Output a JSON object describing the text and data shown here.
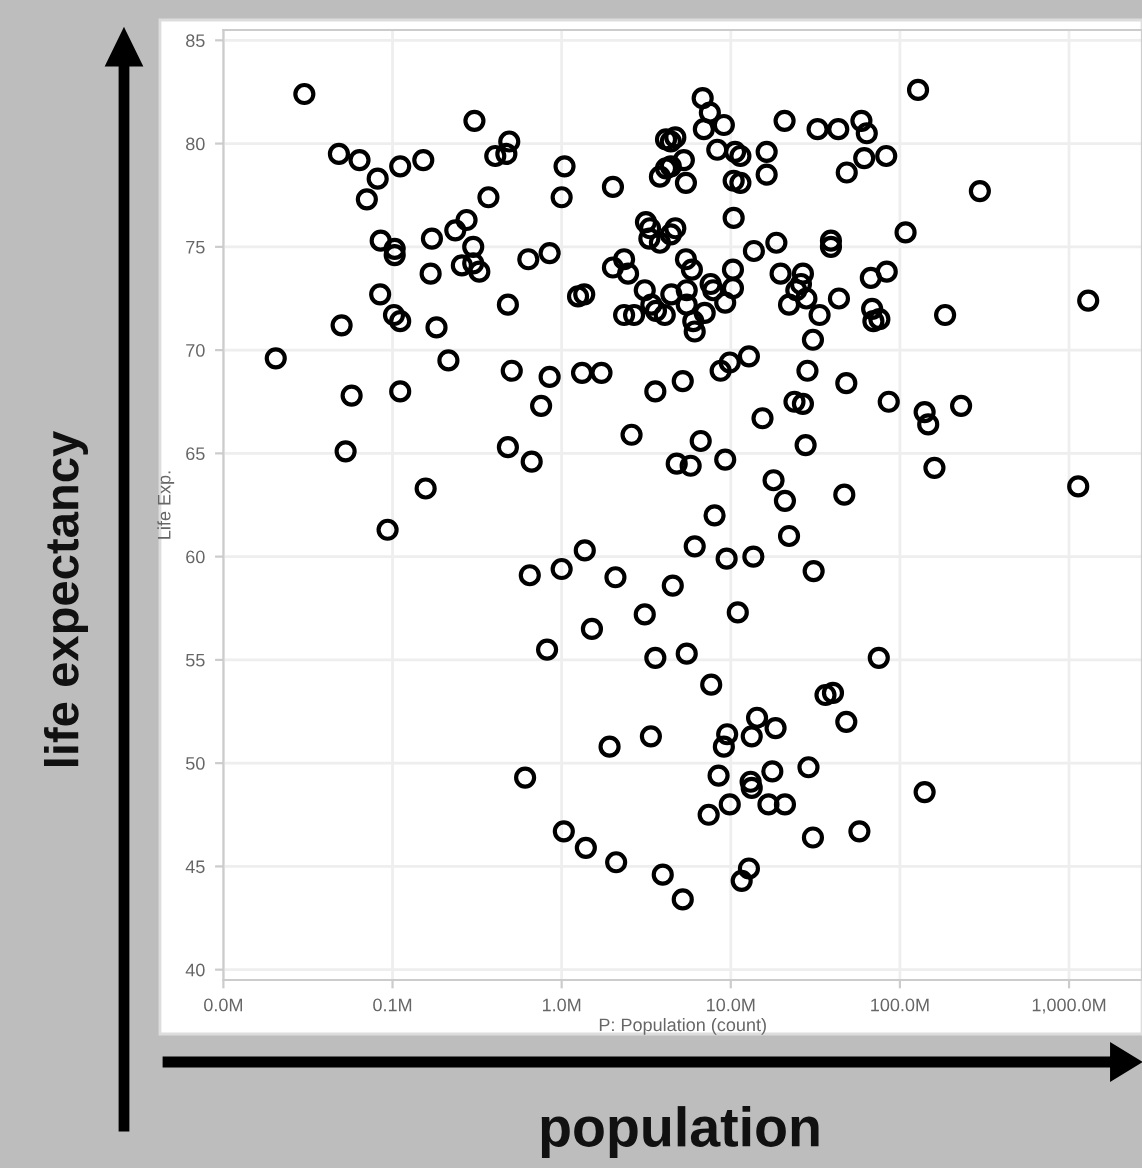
{
  "chart_data": {
    "type": "scatter",
    "xlabel": "P: Population (count)",
    "ylabel": "Life Exp.",
    "annotations": [
      "life expectancy",
      "population"
    ],
    "log": "x",
    "xlim": [
      0.01,
      2700
    ],
    "ylim": [
      39.5,
      85.5
    ],
    "xticks": [
      {
        "value": 0.01,
        "label": "0.0M"
      },
      {
        "value": 0.1,
        "label": "0.1M"
      },
      {
        "value": 1,
        "label": "1.0M"
      },
      {
        "value": 10,
        "label": "10.0M"
      },
      {
        "value": 100,
        "label": "100.0M"
      },
      {
        "value": 1000,
        "label": "1,000.0M"
      }
    ],
    "yticks": [
      40,
      45,
      50,
      55,
      60,
      65,
      70,
      75,
      80,
      85
    ],
    "grid": true,
    "marker": "circle",
    "series": [
      {
        "color": "#000000",
        "x": [
          0.0301,
          0.0482,
          0.0638,
          0.0817,
          0.0705,
          0.111,
          0.152,
          0.305,
          0.405,
          0.471,
          0.49,
          0.369,
          1.04,
          1.0,
          2.01,
          0.0851,
          0.103,
          0.103,
          0.171,
          0.235,
          0.274,
          0.3,
          0.257,
          0.3,
          0.326,
          0.168,
          0.635,
          0.849,
          0.0845,
          0.102,
          0.111,
          0.05,
          0.182,
          0.481,
          0.0204,
          0.214,
          0.507,
          0.849,
          1.32,
          1.72,
          1.25,
          1.36,
          2.01,
          2.47,
          2.34,
          2.34,
          2.68,
          3.1,
          3.15,
          3.33,
          3.3,
          0.0573,
          0.111,
          3.58,
          6.82,
          7.52,
          6.93,
          9.1,
          20.8,
          32.6,
          43.2,
          59.2,
          63.7,
          128,
          4.14,
          4.42,
          4.7,
          8.32,
          10.6,
          11.4,
          16.3,
          3.81,
          4.14,
          4.42,
          5.28,
          5.43,
          10.4,
          11.4,
          16.3,
          48.5,
          61.5,
          83.0,
          297,
          10.4,
          3.81,
          4.42,
          4.7,
          13.7,
          18.6,
          39.1,
          39.1,
          108,
          5.43,
          5.89,
          19.7,
          26.7,
          26.0,
          24.4,
          67.3,
          83.6,
          10.3,
          7.6,
          7.87,
          10.3,
          4.45,
          5.49,
          3.39,
          3.61,
          4.07,
          5.49,
          7.01,
          6.0,
          6.12,
          9.27,
          22.1,
          28.0,
          33.5,
          43.6,
          68.5,
          69.7,
          75.6,
          185,
          1298,
          30.6,
          8.71,
          9.86,
          12.8,
          28.4,
          48.2,
          5.2,
          0.0528,
          0.157,
          0.0935,
          0.481,
          0.665,
          0.756,
          2.59,
          0.648,
          1.0,
          1.37,
          2.08,
          1.51,
          0.82,
          3.1,
          3.58,
          23.8,
          26.7,
          15.4,
          85.9,
          140,
          147,
          230,
          6.64,
          27.7,
          4.79,
          5.79,
          9.27,
          17.9,
          20.9,
          46.9,
          160,
          1133,
          8.02,
          6.12,
          22.1,
          9.45,
          13.6,
          30.9,
          4.54,
          11.0,
          5.49,
          7.66,
          75.0,
          36.3,
          40.2,
          14.3,
          48.2,
          0.608,
          1.03,
          1.39,
          2.1,
          1.92,
          3.37,
          3.96,
          9.52,
          9.1,
          13.3,
          18.4,
          8.47,
          17.6,
          28.8,
          13.1,
          13.3,
          9.86,
          7.4,
          16.7,
          20.9,
          140,
          30.6,
          57.6,
          12.8,
          11.6,
          5.2
        ],
        "values": [
          82.4,
          79.5,
          79.2,
          78.3,
          77.3,
          78.9,
          79.2,
          81.1,
          79.4,
          79.5,
          80.1,
          77.4,
          78.9,
          77.4,
          77.9,
          75.3,
          74.9,
          74.6,
          75.4,
          75.8,
          76.3,
          75.0,
          74.1,
          74.2,
          73.8,
          73.7,
          74.4,
          74.7,
          72.7,
          71.7,
          71.4,
          71.2,
          71.1,
          72.2,
          69.6,
          69.5,
          69.0,
          68.7,
          68.9,
          68.9,
          72.6,
          72.7,
          74.0,
          73.7,
          74.4,
          71.7,
          71.7,
          72.9,
          76.2,
          75.9,
          75.4,
          67.8,
          68.0,
          68.0,
          82.2,
          81.5,
          80.7,
          80.9,
          81.1,
          80.7,
          80.7,
          81.1,
          80.5,
          82.6,
          80.2,
          80.1,
          80.3,
          79.7,
          79.6,
          79.4,
          79.6,
          78.4,
          78.8,
          78.9,
          79.2,
          78.1,
          78.2,
          78.1,
          78.5,
          78.6,
          79.3,
          79.4,
          77.7,
          76.4,
          75.2,
          75.6,
          75.9,
          74.8,
          75.2,
          75.3,
          75.0,
          75.7,
          74.4,
          73.9,
          73.7,
          73.7,
          73.2,
          72.9,
          73.5,
          73.8,
          73.9,
          73.2,
          72.9,
          73.0,
          72.7,
          72.9,
          72.2,
          71.9,
          71.7,
          72.2,
          71.8,
          71.4,
          70.9,
          72.3,
          72.2,
          72.5,
          71.7,
          72.5,
          72.0,
          71.4,
          71.5,
          71.7,
          72.4,
          70.5,
          69.0,
          69.4,
          69.7,
          69.0,
          68.4,
          68.5,
          65.1,
          63.3,
          61.3,
          65.3,
          64.6,
          67.3,
          65.9,
          59.1,
          59.4,
          60.3,
          59.0,
          56.5,
          55.5,
          57.2,
          55.1,
          67.5,
          67.4,
          66.7,
          67.5,
          67.0,
          66.4,
          67.3,
          65.6,
          65.4,
          64.5,
          64.4,
          64.7,
          63.7,
          62.7,
          63.0,
          64.3,
          63.4,
          62.0,
          60.5,
          61.0,
          59.9,
          60.0,
          59.3,
          58.6,
          57.3,
          55.3,
          53.8,
          55.1,
          53.3,
          53.4,
          52.2,
          52.0,
          49.3,
          46.7,
          45.9,
          45.2,
          50.8,
          51.3,
          44.6,
          51.4,
          50.8,
          51.3,
          51.7,
          49.4,
          49.6,
          49.8,
          49.1,
          48.8,
          48.0,
          47.5,
          48.0,
          48.0,
          48.6,
          46.4,
          46.7,
          44.9,
          44.3,
          43.4
        ]
      }
    ]
  }
}
